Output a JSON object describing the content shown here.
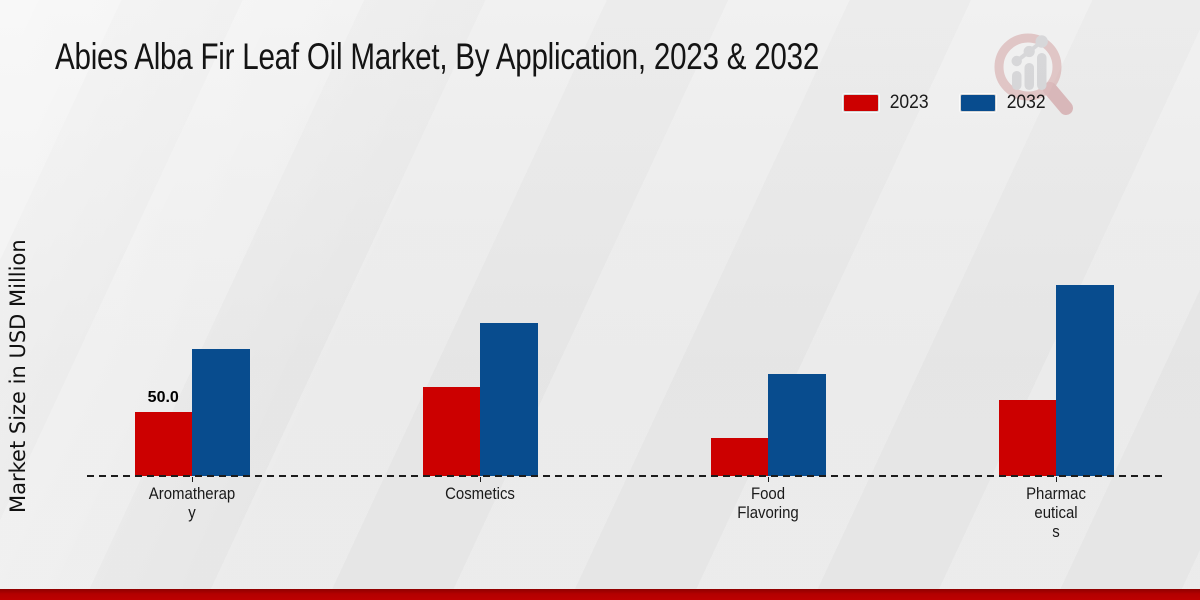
{
  "title": "Abies Alba Fir Leaf Oil Market, By Application, 2023 & 2032",
  "ylabel": "Market Size in USD Million",
  "legend": {
    "position": "top-right",
    "items": [
      {
        "label": "2023",
        "color": "#cc0000"
      },
      {
        "label": "2032",
        "color": "#084c8e"
      }
    ]
  },
  "chart_data": {
    "type": "bar",
    "title": "Abies Alba Fir Leaf Oil Market, By Application, 2023 & 2032",
    "xlabel": "",
    "ylabel": "Market Size in USD Million",
    "categories": [
      "Aromatherapy",
      "Cosmetics",
      "Food Flavoring",
      "Pharmaceuticals"
    ],
    "category_label_lines": [
      [
        "Aromatherap",
        "y"
      ],
      [
        "Cosmetics"
      ],
      [
        "Food",
        "Flavoring"
      ],
      [
        "Pharmac",
        "eutical",
        "s"
      ]
    ],
    "series": [
      {
        "name": "2023",
        "color": "#cc0000",
        "values": [
          50.0,
          70.0,
          30.0,
          60.0
        ]
      },
      {
        "name": "2032",
        "color": "#084c8e",
        "values": [
          100.0,
          120.0,
          80.0,
          150.0
        ]
      }
    ],
    "bar_labels": [
      {
        "series_index": 0,
        "category_index": 0,
        "text": "50.0"
      }
    ],
    "ylim": [
      0,
      260
    ],
    "grid": false,
    "legend_position": "top-right",
    "baseline_style": "dashed"
  },
  "colors": {
    "series_2023": "#cc0000",
    "series_2032": "#084c8e",
    "axis_line": "#1c1c1c",
    "text": "#1a1a1a",
    "footer_strip": "#b30000",
    "background": "#eaeaea"
  },
  "branding": {
    "watermark_icon": "magnifier-bar-chart-logo"
  }
}
